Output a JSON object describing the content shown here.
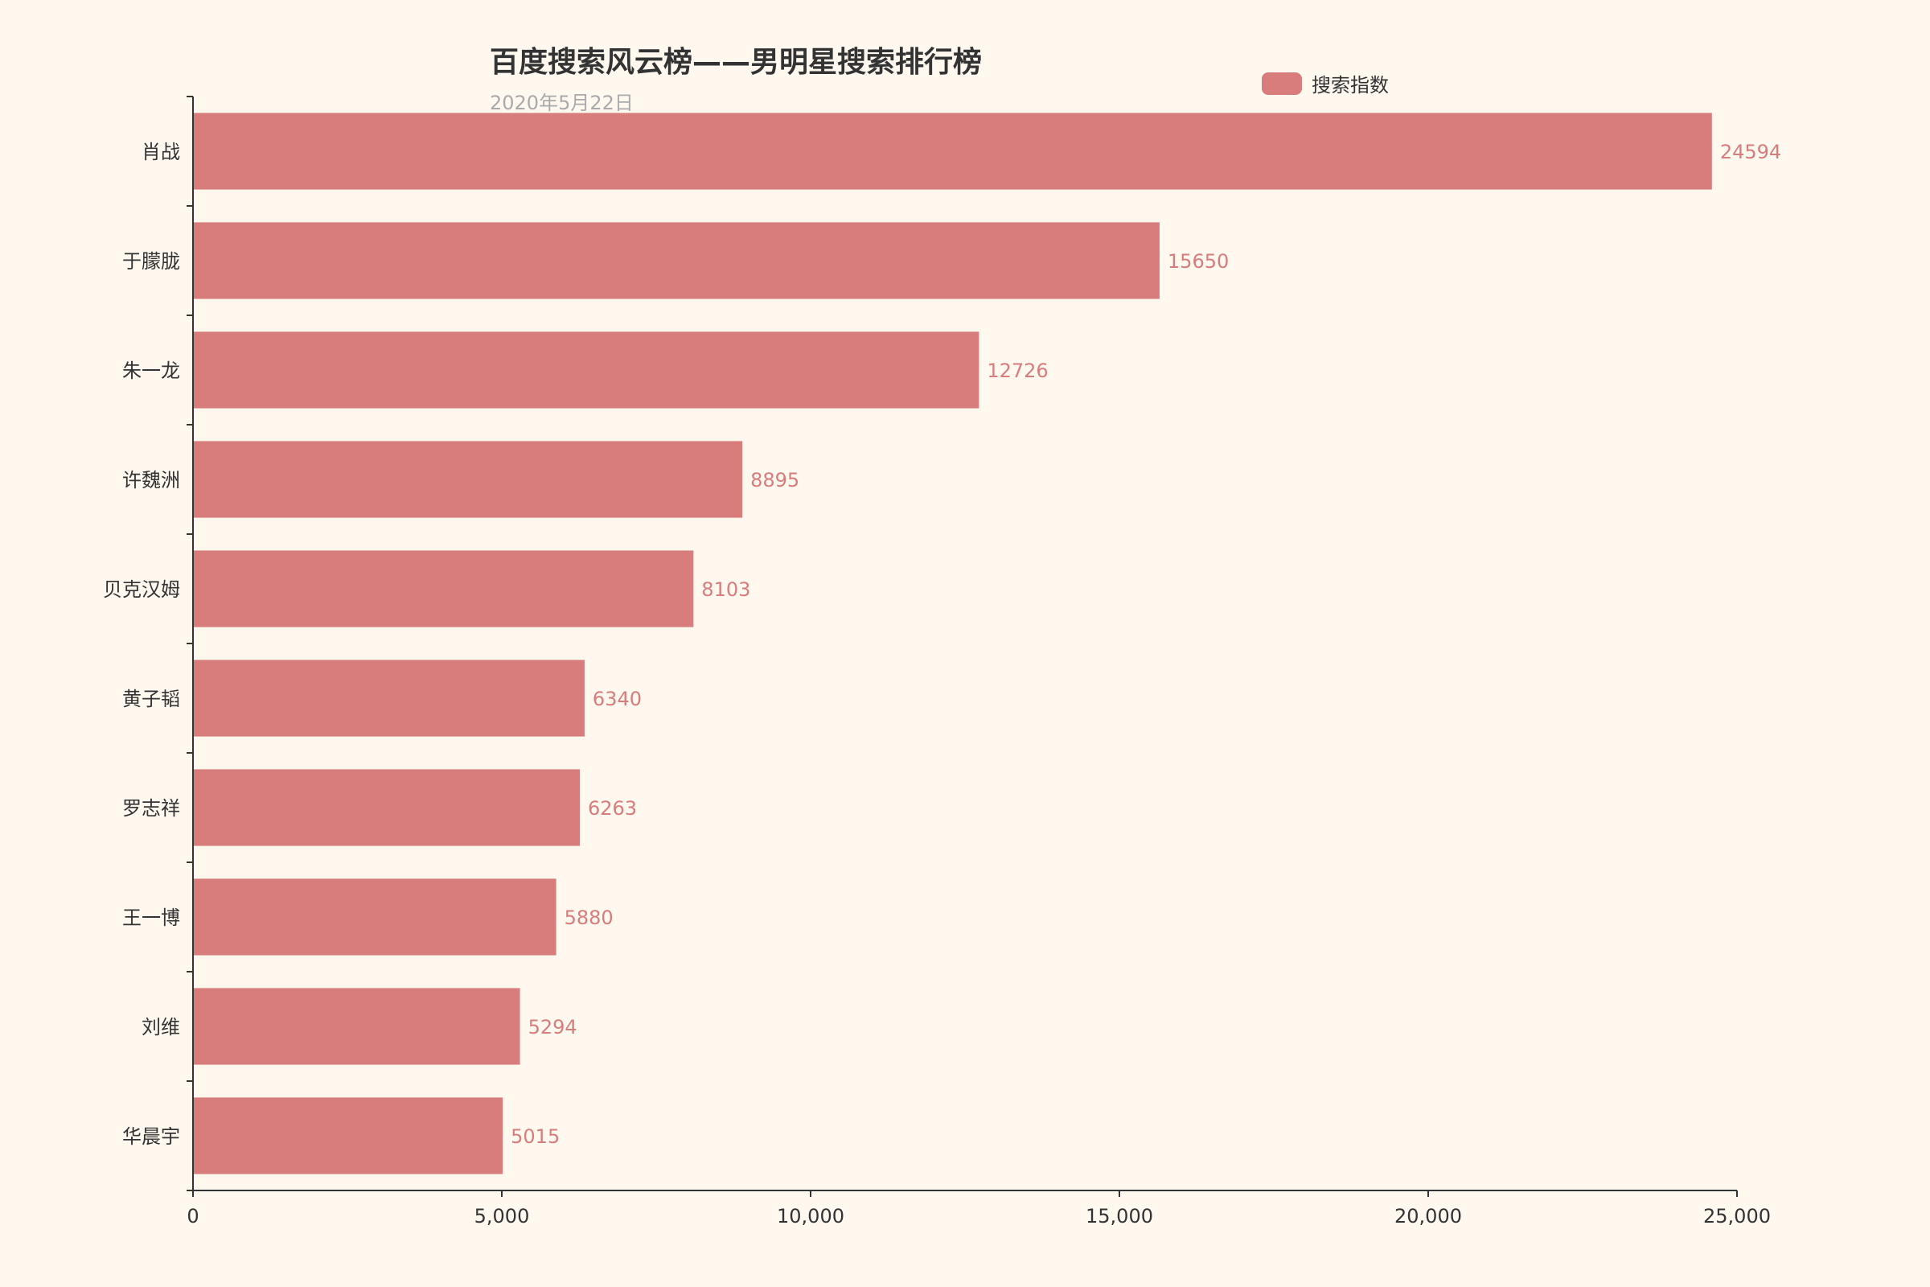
{
  "colors": {
    "background": "#fef8ef",
    "bar": "#d87c7c",
    "axis": "#333333",
    "title": "#333333",
    "subtitle": "#aaaaaa"
  },
  "chart_data": {
    "type": "bar",
    "orientation": "horizontal",
    "title": "百度搜索风云榜——男明星搜索排行榜",
    "subtitle": "2020年5月22日",
    "legend_position": "top-right",
    "grid": false,
    "xlim": [
      0,
      25000
    ],
    "x_ticks": [
      0,
      5000,
      10000,
      15000,
      20000,
      25000
    ],
    "x_tick_labels": [
      "0",
      "5,000",
      "10,000",
      "15,000",
      "20,000",
      "25,000"
    ],
    "categories": [
      "肖战",
      "于朦胧",
      "朱一龙",
      "许魏洲",
      "贝克汉姆",
      "黄子韬",
      "罗志祥",
      "王一博",
      "刘维",
      "华晨宇"
    ],
    "series": [
      {
        "name": "搜索指数",
        "color": "#d87c7c",
        "values": [
          24594,
          15650,
          12726,
          8895,
          8103,
          6340,
          6263,
          5880,
          5294,
          5015
        ]
      }
    ]
  }
}
